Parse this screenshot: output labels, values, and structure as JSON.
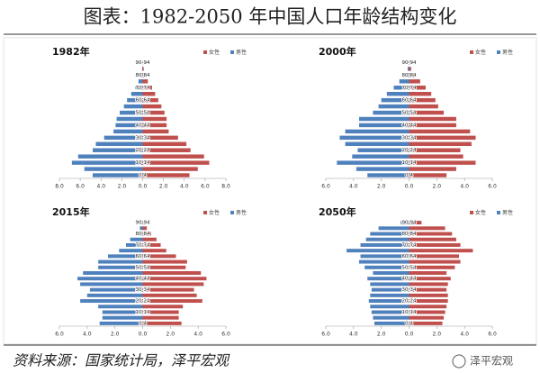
{
  "title": "图表：1982-2050 年中国人口年龄结构变化",
  "source": "资料来源：国家统计局，泽平宏观",
  "watermark": "泽平宏观",
  "chart_data": [
    {
      "type": "pyramid",
      "title": "1982年",
      "categories": [
        "0-4",
        null,
        "10-14",
        null,
        "20-24",
        null,
        "30-34",
        null,
        "40-44",
        null,
        "50-54",
        null,
        "60-64",
        null,
        "70-74",
        null,
        "80-84",
        null,
        "90-94"
      ],
      "series": [
        {
          "name": "女性",
          "color": "#c0504d",
          "values": [
            4.5,
            5.3,
            6.4,
            5.9,
            4.6,
            4.2,
            3.4,
            2.5,
            2.3,
            2.3,
            2.1,
            1.8,
            1.5,
            1.2,
            0.9,
            0.5,
            0.3,
            0.1,
            0.02
          ]
        },
        {
          "name": "男性",
          "color": "#4f81bd",
          "values": [
            -4.8,
            -5.6,
            -6.8,
            -6.2,
            -4.8,
            -4.5,
            -3.7,
            -2.8,
            -2.6,
            -2.5,
            -2.2,
            -1.8,
            -1.5,
            -1.1,
            -0.7,
            -0.4,
            -0.2,
            -0.05,
            -0.01
          ]
        }
      ],
      "xlim": [
        -8,
        8
      ],
      "xticks": [
        {
          "value": -8,
          "label": "8.0"
        },
        {
          "value": -6,
          "label": "6.0"
        },
        {
          "value": -4,
          "label": "4.0"
        },
        {
          "value": -2,
          "label": "2.0"
        },
        {
          "value": 0,
          "label": "0.0"
        },
        {
          "value": 2,
          "label": "2.0"
        },
        {
          "value": 4,
          "label": "4.0"
        },
        {
          "value": 6,
          "label": "6.0"
        },
        {
          "value": 8,
          "label": "8.0"
        }
      ]
    },
    {
      "type": "pyramid",
      "title": "2000年",
      "categories": [
        "0-4",
        null,
        "10-14",
        null,
        "20-24",
        null,
        "30-34",
        null,
        "40-44",
        null,
        "50-54",
        null,
        "60-64",
        null,
        "70-74",
        null,
        "80-84",
        null,
        "90-94"
      ],
      "series": [
        {
          "name": "女性",
          "color": "#c0504d",
          "values": [
            2.7,
            3.4,
            4.8,
            3.9,
            3.7,
            4.5,
            4.8,
            4.4,
            3.4,
            3.4,
            2.5,
            2.1,
            1.9,
            1.6,
            1.2,
            0.8,
            0.4,
            0.15,
            0.03
          ]
        },
        {
          "name": "男性",
          "color": "#4f81bd",
          "values": [
            -3.0,
            -3.8,
            -5.2,
            -4.1,
            -3.7,
            -4.6,
            -5.0,
            -4.6,
            -3.6,
            -3.6,
            -2.6,
            -2.2,
            -2.0,
            -1.6,
            -1.1,
            -0.7,
            -0.3,
            -0.1,
            -0.02
          ]
        }
      ],
      "xlim": [
        -6,
        6
      ],
      "xticks": [
        {
          "value": -6,
          "label": "6.0"
        },
        {
          "value": -4,
          "label": "4.0"
        },
        {
          "value": -2,
          "label": "2.0"
        },
        {
          "value": 0,
          "label": "0.0"
        },
        {
          "value": 2,
          "label": "2.0"
        },
        {
          "value": 4,
          "label": "4.0"
        },
        {
          "value": 6,
          "label": "6.0"
        }
      ]
    },
    {
      "type": "pyramid",
      "title": "2015年",
      "categories": [
        "0-4",
        null,
        "10-14",
        null,
        "20-24",
        null,
        "30-34",
        null,
        "40-44",
        null,
        "50-54",
        null,
        "60-64",
        null,
        "70-74",
        null,
        "80-84",
        null,
        "90-94"
      ],
      "series": [
        {
          "name": "女性",
          "color": "#c0504d",
          "values": [
            2.8,
            2.6,
            2.6,
            2.9,
            4.3,
            3.9,
            3.7,
            4.4,
            4.6,
            4.2,
            3.1,
            3.2,
            2.4,
            1.7,
            1.3,
            1.0,
            0.6,
            0.3,
            0.1
          ]
        },
        {
          "name": "男性",
          "color": "#4f81bd",
          "values": [
            -3.1,
            -2.9,
            -2.9,
            -3.2,
            -4.5,
            -4.0,
            -3.8,
            -4.5,
            -4.7,
            -4.3,
            -3.2,
            -3.2,
            -2.5,
            -1.7,
            -1.2,
            -0.9,
            -0.5,
            -0.2,
            -0.05
          ]
        }
      ],
      "xlim": [
        -6,
        6
      ],
      "xticks": [
        {
          "value": -6,
          "label": "6.0"
        },
        {
          "value": -4,
          "label": "4.0"
        },
        {
          "value": -2,
          "label": "2.0"
        },
        {
          "value": 0,
          "label": "0.0"
        },
        {
          "value": 2,
          "label": "2.0"
        },
        {
          "value": 4,
          "label": "4.0"
        },
        {
          "value": 6,
          "label": "6.0"
        }
      ]
    },
    {
      "type": "pyramid",
      "title": "2050年",
      "categories": [
        "0-4",
        null,
        "10-14",
        null,
        "20-24",
        null,
        "30-34",
        null,
        "40-44",
        null,
        "50-54",
        null,
        "60-64",
        null,
        "70-74",
        null,
        "80-84",
        null,
        "90-94"
      ],
      "series": [
        {
          "name": "女性",
          "color": "#c0504d",
          "values": [
            2.4,
            2.5,
            2.6,
            2.7,
            2.8,
            2.8,
            2.7,
            2.8,
            3.0,
            2.7,
            3.3,
            3.7,
            3.6,
            4.6,
            3.7,
            3.4,
            3.1,
            2.6,
            0.9
          ]
        },
        {
          "name": "男性",
          "color": "#4f81bd",
          "values": [
            -2.5,
            -2.6,
            -2.7,
            -2.8,
            -2.9,
            -2.8,
            -2.7,
            -2.8,
            -3.0,
            -2.6,
            -3.2,
            -3.6,
            -3.5,
            -4.5,
            -3.5,
            -3.1,
            -2.8,
            -2.2,
            -0.6
          ]
        }
      ],
      "xlim": [
        -6,
        6
      ],
      "xticks": [
        {
          "value": -6,
          "label": "6.0"
        },
        {
          "value": -4,
          "label": "4.0"
        },
        {
          "value": -2,
          "label": "2.0"
        },
        {
          "value": 0,
          "label": "0.0"
        },
        {
          "value": 2,
          "label": "2.0"
        },
        {
          "value": 4,
          "label": "4.0"
        },
        {
          "value": 6,
          "label": "6.0"
        }
      ]
    }
  ]
}
